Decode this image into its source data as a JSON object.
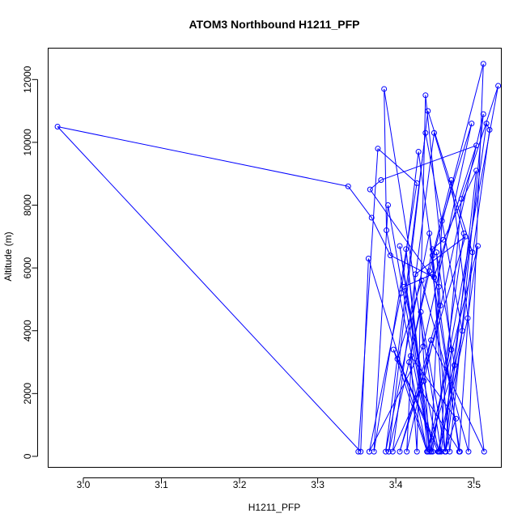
{
  "chart_data": {
    "type": "line",
    "title": "ATOM3 Northbound H1211_PFP",
    "xlabel": "H1211_PFP",
    "ylabel": "Altitude (m)",
    "xlim": [
      2.955,
      3.535
    ],
    "ylim": [
      -350,
      13000
    ],
    "xticks": [
      3.0,
      3.1,
      3.2,
      3.3,
      3.4,
      3.5
    ],
    "xtick_labels": [
      "3.0",
      "3.1",
      "3.2",
      "3.3",
      "3.4",
      "3.5"
    ],
    "yticks": [
      0,
      2000,
      4000,
      6000,
      8000,
      10000,
      12000
    ],
    "ytick_labels": [
      "0",
      "2000",
      "4000",
      "6000",
      "8000",
      "10000",
      "12000"
    ],
    "grid": false,
    "color": "#0000ff",
    "marker": "open-circle",
    "series": [
      {
        "x": [
          3.352,
          3.377,
          3.427,
          3.372,
          3.39,
          3.445,
          3.459,
          3.497,
          3.435,
          3.366,
          3.407,
          3.429,
          3.481,
          3.498,
          3.441,
          3.391,
          3.443,
          3.512,
          3.493,
          3.433,
          3.402,
          3.454,
          3.485,
          3.438,
          3.387,
          3.443,
          3.469,
          3.512,
          3.436,
          3.396,
          3.449,
          3.487,
          3.447,
          3.405,
          3.432,
          3.482,
          3.447,
          3.41,
          3.455,
          3.492,
          3.505,
          3.44,
          3.397,
          3.456,
          3.484,
          3.531,
          3.445,
          3.388,
          3.385,
          3.458,
          3.516,
          3.52,
          3.464,
          3.471,
          3.438,
          3.427,
          3.419,
          3.477,
          3.463,
          3.447,
          3.471,
          3.513,
          3.445,
          3.414,
          3.425,
          3.489,
          3.405,
          3.457,
          3.452,
          3.475,
          3.44,
          3.417,
          3.447,
          3.461,
          3.503,
          3.463,
          3.432,
          3.443,
          3.413,
          3.441,
          3.365,
          3.355,
          2.967,
          3.339,
          3.369,
          3.393,
          3.449,
          3.503,
          3.381,
          3.367,
          3.455
        ],
        "y": [
          150,
          9800,
          8700,
          150,
          8000,
          150,
          7500,
          10600,
          3500,
          150,
          5200,
          9700,
          150,
          6500,
          11000,
          150,
          5900,
          12500,
          150,
          5600,
          3100,
          150,
          4000,
          10300,
          150,
          7100,
          150,
          10900,
          2400,
          150,
          10300,
          7100,
          150,
          6700,
          2100,
          150,
          5800,
          5400,
          150,
          4400,
          6700,
          150,
          3400,
          150,
          8200,
          11800,
          150,
          7200,
          11700,
          150,
          10600,
          10400,
          150,
          3400,
          11500,
          150,
          3200,
          1200,
          150,
          6400,
          8800,
          150,
          3700,
          150,
          5800,
          7000,
          150,
          4800,
          6500,
          2900,
          150,
          3000,
          6600,
          6900,
          9100,
          150,
          4600,
          150,
          6600,
          150,
          6300,
          150,
          10500,
          8600,
          7600,
          6400,
          5700,
          9900,
          8800,
          8500,
          5400
        ]
      }
    ]
  }
}
